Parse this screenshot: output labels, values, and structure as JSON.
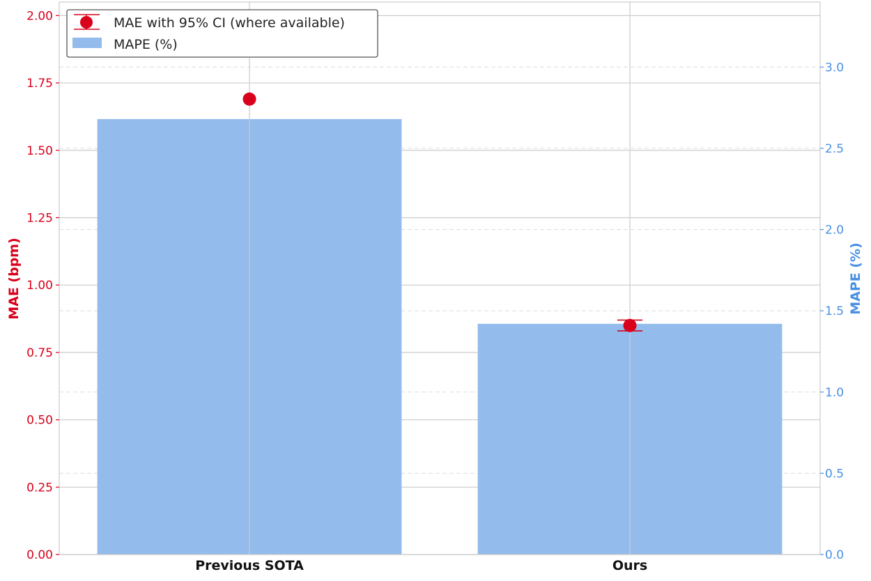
{
  "chart_data": {
    "type": "bar",
    "categories": [
      "Previous SOTA",
      "Ours"
    ],
    "series": [
      {
        "name": "MAPE (%)",
        "kind": "bar",
        "axis": "right",
        "values": [
          2.68,
          1.42
        ]
      },
      {
        "name": "MAE with 95% CI (where available)",
        "kind": "point_errorbar",
        "axis": "left",
        "values": [
          1.69,
          0.85
        ],
        "ci_low": [
          null,
          0.83
        ],
        "ci_high": [
          null,
          0.87
        ]
      }
    ],
    "ylabel": "MAE (bpm)",
    "y2label": "MAPE (%)",
    "ylim": [
      0,
      2.05
    ],
    "y2lim": [
      0,
      3.4
    ],
    "yticks": [
      "0.00",
      "0.25",
      "0.50",
      "0.75",
      "1.00",
      "1.25",
      "1.50",
      "1.75",
      "2.00"
    ],
    "y2ticks": [
      "0.0",
      "0.5",
      "1.0",
      "1.5",
      "2.0",
      "2.5",
      "3.0"
    ],
    "legend_position": "top-left",
    "grid": true,
    "colors": {
      "mae": "#d9001b",
      "mape_bar": "#93bbeb",
      "mape_axis": "#4a90e2",
      "grid": "#cccccc"
    }
  }
}
